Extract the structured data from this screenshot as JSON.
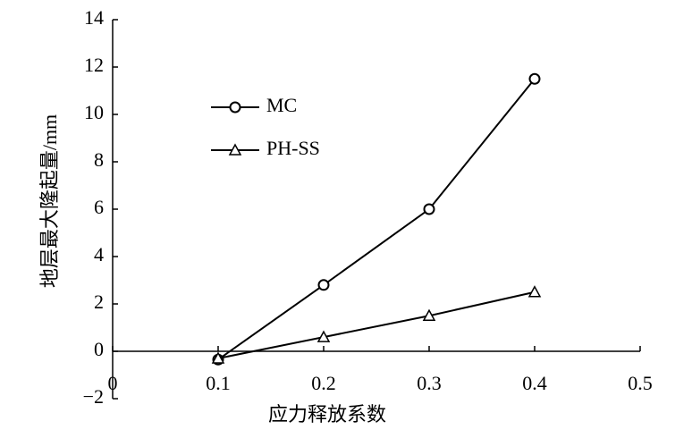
{
  "chart_data": {
    "type": "line",
    "x_label": "应力释放系数",
    "y_label": "地层最大隆起量/mm",
    "x": [
      0.1,
      0.2,
      0.3,
      0.4
    ],
    "series": [
      {
        "name": "MC",
        "color": "#000000",
        "marker": "circle",
        "values": [
          -0.35,
          2.8,
          6.0,
          11.5
        ]
      },
      {
        "name": "PH-SS",
        "color": "#000000",
        "marker": "triangle",
        "values": [
          -0.3,
          0.6,
          1.5,
          2.5
        ]
      }
    ],
    "xlim": [
      0,
      0.5
    ],
    "xticks": [
      0,
      0.1,
      0.2,
      0.3,
      0.4,
      0.5
    ],
    "ylim": [
      -2,
      14
    ],
    "yticks": [
      {
        "value": -2,
        "label": "−2"
      },
      0,
      2,
      4,
      6,
      8,
      10,
      12,
      14
    ],
    "grid": false,
    "legend": "upper left"
  }
}
